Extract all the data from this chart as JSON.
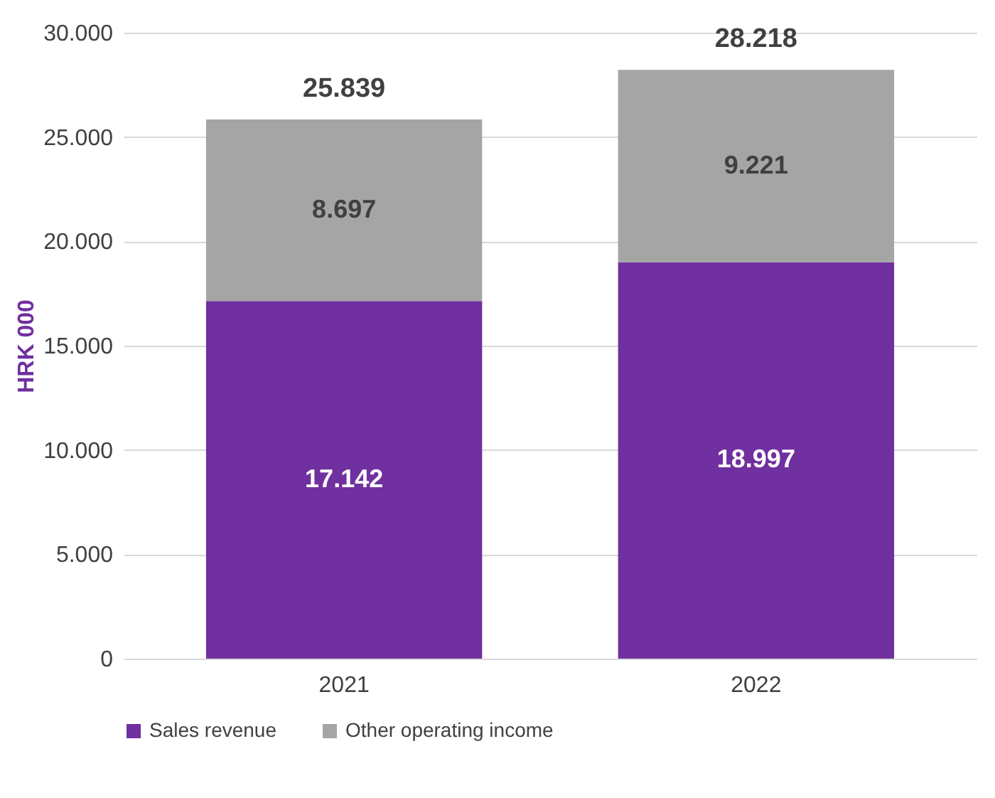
{
  "chart_data": {
    "type": "bar",
    "stacked": true,
    "categories": [
      "2021",
      "2022"
    ],
    "series": [
      {
        "name": "Sales revenue",
        "color": "#7030a0",
        "values": [
          17142,
          18997
        ],
        "value_labels": [
          "17.142",
          "18.997"
        ]
      },
      {
        "name": "Other operating income",
        "color": "#a5a5a5",
        "values": [
          8697,
          9221
        ],
        "value_labels": [
          "8.697",
          "9.221"
        ]
      }
    ],
    "totals": [
      "25.839",
      "28.218"
    ],
    "ylabel": "HRK 000",
    "ylim": [
      0,
      30000
    ],
    "yticks": [
      {
        "value": 0,
        "label": "0"
      },
      {
        "value": 5000,
        "label": "5.000"
      },
      {
        "value": 10000,
        "label": "10.000"
      },
      {
        "value": 15000,
        "label": "15.000"
      },
      {
        "value": 20000,
        "label": "20.000"
      },
      {
        "value": 25000,
        "label": "25.000"
      },
      {
        "value": 30000,
        "label": "30.000"
      }
    ],
    "grid": "y",
    "legend": "bottom"
  }
}
